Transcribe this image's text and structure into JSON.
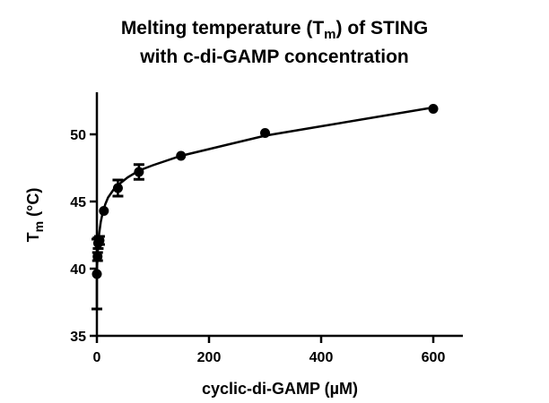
{
  "chart_data": {
    "type": "scatter",
    "title_line1_pre": "Melting temperature (T",
    "title_line1_sub": "m",
    "title_line1_post": ") of STING",
    "title_line2": "with c-di-GAMP concentration",
    "xlabel": "cyclic-di-GAMP (µM)",
    "ylabel_main": "T",
    "ylabel_sub": "m",
    "ylabel_post": " (°C)",
    "xlim": [
      0,
      650
    ],
    "ylim": [
      35,
      53
    ],
    "xticks": [
      0,
      200,
      400,
      600
    ],
    "xtick_labels": [
      "0",
      "200",
      "400",
      "600"
    ],
    "yticks": [
      35,
      40,
      45,
      50
    ],
    "ytick_labels": [
      "35",
      "40",
      "45",
      "50"
    ],
    "grid": false,
    "legend": "none",
    "series": [
      {
        "name": "Tm",
        "marker": "circle",
        "color": "#000000",
        "points": [
          {
            "x": 0,
            "y": 39.6,
            "err": 2.6
          },
          {
            "x": 1.2,
            "y": 40.9,
            "err": 0.3
          },
          {
            "x": 2.3,
            "y": 41.9,
            "err": 0.4
          },
          {
            "x": 4.7,
            "y": 42.1,
            "err": 0.3
          },
          {
            "x": 12.5,
            "y": 44.3,
            "err": 0.1
          },
          {
            "x": 37.5,
            "y": 46.0,
            "err": 0.6
          },
          {
            "x": 75,
            "y": 47.2,
            "err": 0.55
          },
          {
            "x": 150,
            "y": 48.4,
            "err": 0.1
          },
          {
            "x": 300,
            "y": 50.1,
            "err": 0.1
          },
          {
            "x": 600,
            "y": 51.9,
            "err": 0.1
          }
        ]
      }
    ],
    "fit_curve": {
      "name": "fit",
      "color": "#000000",
      "x": [
        0,
        1,
        2,
        4,
        7,
        10,
        15,
        20,
        30,
        40,
        55,
        75,
        100,
        150,
        200,
        300,
        400,
        500,
        600
      ],
      "y": [
        39.8,
        40.8,
        41.6,
        42.6,
        43.5,
        44.1,
        44.8,
        45.3,
        45.9,
        46.3,
        46.8,
        47.3,
        47.7,
        48.4,
        48.9,
        49.9,
        50.6,
        51.3,
        52.0
      ]
    }
  }
}
